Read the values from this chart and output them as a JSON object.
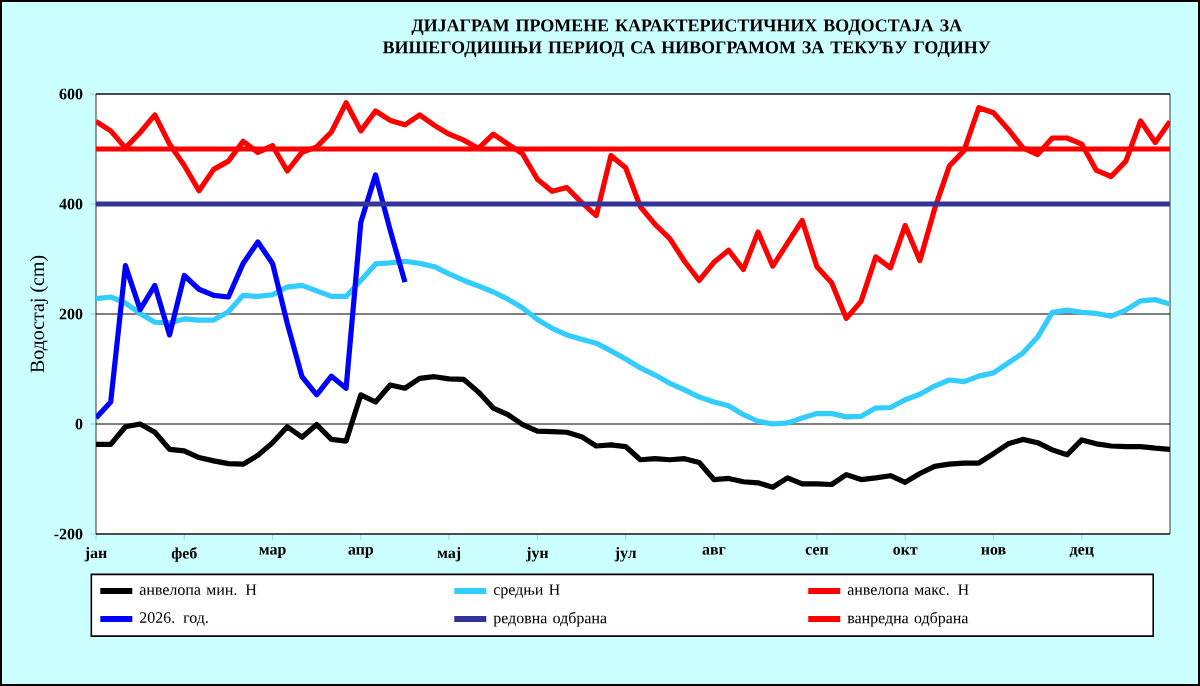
{
  "chart_data": {
    "type": "line",
    "title": "ДИЈАГРАМ ПРОМЕНЕ КАРАКТЕРИСТИЧНИХ ВОДОСТАЈА ЗА ВИШЕГОДИШЊИ ПЕРИОД СА НИВОГРАМОМ ЗА ТЕКУЋУ ГОДИНУ",
    "ylabel": "Водостај (cm)",
    "categories": [
      "јан",
      null,
      null,
      null,
      null,
      null,
      "феб",
      null,
      null,
      null,
      null,
      null,
      "мар",
      null,
      null,
      null,
      null,
      null,
      "апр",
      null,
      null,
      null,
      null,
      null,
      "мај",
      null,
      null,
      null,
      null,
      null,
      "јун",
      null,
      null,
      null,
      null,
      null,
      "јул",
      null,
      null,
      null,
      null,
      null,
      "авг",
      null,
      null,
      null,
      null,
      null,
      null,
      "сеп",
      null,
      null,
      null,
      null,
      null,
      "окт",
      null,
      null,
      null,
      null,
      null,
      "нов",
      null,
      null,
      null,
      null,
      null,
      "дец",
      null,
      null,
      null,
      null,
      null,
      null
    ],
    "ylim": [
      -200,
      600
    ],
    "yticks": [
      -200,
      0,
      200,
      400,
      600
    ],
    "grid": "y",
    "legend": "bottom",
    "marker": "none",
    "line_style": "solid",
    "series": [
      {
        "name": "анвелопа мин. H",
        "color": "#000000",
        "values": [
          -37,
          -37,
          -5,
          0,
          -15,
          -46,
          -49,
          -61,
          -67,
          -72,
          -73,
          -57,
          -34,
          -5,
          -24,
          -1,
          -28,
          -31,
          53,
          40,
          71,
          65,
          83,
          86,
          82,
          81,
          58,
          29,
          17,
          -1,
          -13,
          -14,
          -15,
          -23,
          -40,
          -38,
          -41,
          -65,
          -63,
          -65,
          -63,
          -70,
          -101,
          -99,
          -105,
          -107,
          -115,
          -98,
          -109,
          -109,
          -110,
          -92,
          -101,
          -98,
          -94,
          -106,
          -90,
          -77,
          -73,
          -71,
          -71,
          -54,
          -36,
          -28,
          -34,
          -47,
          -56,
          -29,
          -36,
          -40,
          -41,
          -41,
          -44,
          -46
        ]
      },
      {
        "name": "средњи H",
        "color": "#33ccff",
        "values": [
          228,
          231,
          220,
          201,
          185,
          184,
          191,
          189,
          189,
          204,
          234,
          232,
          235,
          249,
          252,
          242,
          232,
          232,
          261,
          291,
          293,
          296,
          292,
          286,
          273,
          261,
          251,
          240,
          227,
          211,
          190,
          174,
          162,
          154,
          147,
          133,
          118,
          102,
          89,
          74,
          62,
          49,
          40,
          33,
          17,
          5,
          0,
          2,
          11,
          19,
          19,
          13,
          14,
          29,
          30,
          44,
          54,
          69,
          80,
          77,
          87,
          93,
          111,
          129,
          158,
          203,
          207,
          203,
          201,
          196,
          207,
          224,
          226,
          218
        ]
      },
      {
        "name": "анвелопа макс. H",
        "color": "#ff0000",
        "values": [
          550,
          533,
          502,
          530,
          562,
          509,
          470,
          424,
          463,
          478,
          514,
          494,
          506,
          460,
          494,
          504,
          531,
          584,
          533,
          569,
          552,
          544,
          562,
          543,
          527,
          516,
          501,
          527,
          509,
          491,
          445,
          423,
          430,
          403,
          379,
          488,
          466,
          395,
          363,
          337,
          296,
          261,
          294,
          316,
          281,
          349,
          287,
          329,
          370,
          286,
          257,
          192,
          223,
          304,
          284,
          361,
          297,
          391,
          469,
          497,
          575,
          566,
          536,
          502,
          490,
          520,
          520,
          509,
          461,
          450,
          478,
          551,
          512,
          550
        ]
      },
      {
        "name": "2026. год.",
        "color": "#0000ff",
        "values": [
          11,
          40,
          288,
          208,
          252,
          162,
          270,
          245,
          234,
          231,
          292,
          331,
          292,
          183,
          86,
          53,
          87,
          65,
          367,
          453,
          352,
          258,
          null,
          null,
          null,
          null,
          null,
          null,
          null,
          null,
          null,
          null,
          null,
          null,
          null,
          null,
          null,
          null,
          null,
          null,
          null,
          null,
          null,
          null,
          null,
          null,
          null,
          null,
          null,
          null,
          null,
          null,
          null,
          null,
          null,
          null,
          null,
          null,
          null,
          null,
          null,
          null,
          null,
          null,
          null,
          null,
          null,
          null,
          null,
          null,
          null,
          null,
          null,
          null
        ]
      }
    ],
    "ref_lines": [
      {
        "axis": "y",
        "value": 400,
        "label": "редовна одбрана",
        "color": "#333399"
      },
      {
        "axis": "y",
        "value": 500,
        "label": "ванредна одбрана",
        "color": "#ff0000"
      }
    ]
  }
}
